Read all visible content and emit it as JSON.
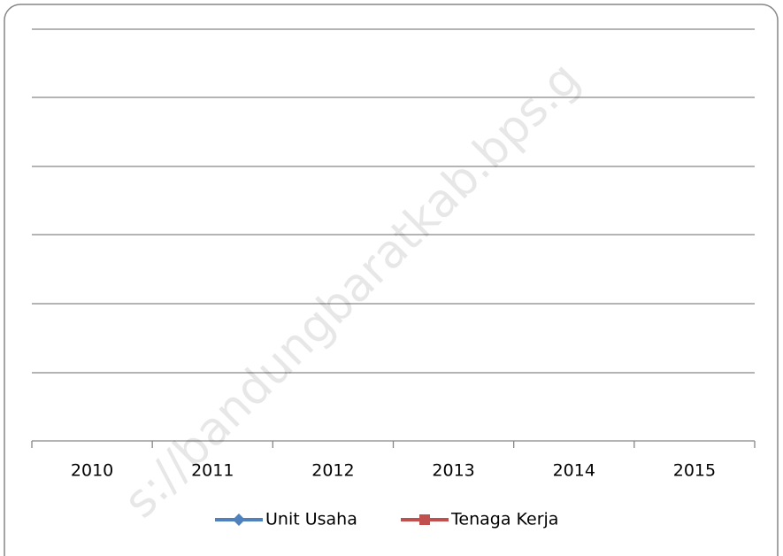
{
  "chart_data": {
    "type": "line",
    "categories": [
      "2010",
      "2011",
      "2012",
      "2013",
      "2014",
      "2015"
    ],
    "series": [
      {
        "name": "Unit Usaha",
        "color": "#4f81bd",
        "marker": "diamond",
        "values": [
          null,
          null,
          null,
          null,
          null,
          null
        ]
      },
      {
        "name": "Tenaga Kerja",
        "color": "#c0504d",
        "marker": "square",
        "values": [
          null,
          null,
          null,
          null,
          null,
          null
        ]
      }
    ],
    "grid": true,
    "legend": "bottom",
    "watermark": "s://bandungbaratkab.bps.g"
  }
}
